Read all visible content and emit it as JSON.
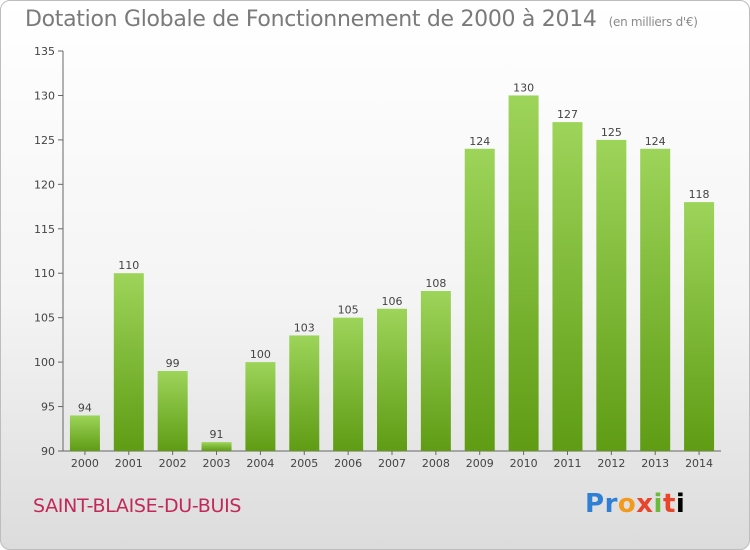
{
  "header": {
    "title": "Dotation Globale de Fonctionnement de 2000 à 2014",
    "subtitle": "(en milliers d'€)"
  },
  "footer": {
    "commune": "SAINT-BLAISE-DU-BUIS",
    "logo_text": "Proxiti"
  },
  "colors": {
    "bar_top": "#9dd45a",
    "bar_bottom": "#5f9c14",
    "commune": "#c3285a"
  },
  "chart_data": {
    "type": "bar",
    "title": "Dotation Globale de Fonctionnement de 2000 à 2014",
    "subtitle": "(en milliers d'€)",
    "xlabel": "",
    "ylabel": "",
    "categories": [
      "2000",
      "2001",
      "2002",
      "2003",
      "2004",
      "2005",
      "2006",
      "2007",
      "2008",
      "2009",
      "2010",
      "2011",
      "2012",
      "2013",
      "2014"
    ],
    "values": [
      94,
      110,
      99,
      91,
      100,
      103,
      105,
      106,
      108,
      124,
      130,
      127,
      125,
      124,
      118
    ],
    "ylim": [
      90,
      135
    ],
    "yticks": [
      90,
      95,
      100,
      105,
      110,
      115,
      120,
      125,
      130,
      135
    ],
    "grid": false,
    "legend": "none"
  }
}
